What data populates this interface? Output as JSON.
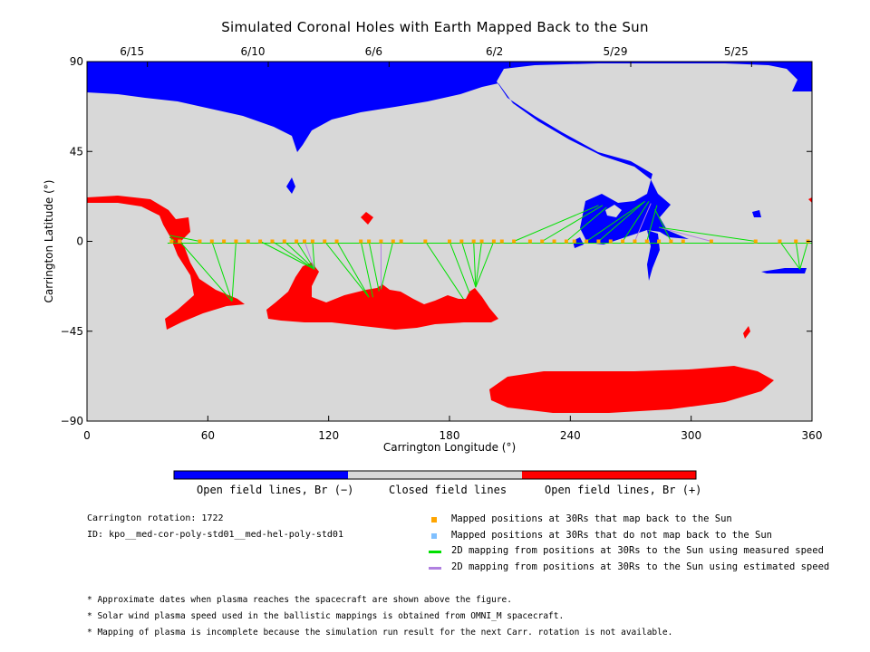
{
  "title": "Simulated Coronal Holes with Earth Mapped Back to the Sun",
  "chart_data": {
    "type": "map",
    "title": "Simulated Coronal Holes with Earth Mapped Back to the Sun",
    "xlabel": "Carrington Longitude (°)",
    "ylabel": "Carrington Latitude (°)",
    "xlim": [
      0,
      360
    ],
    "ylim": [
      -90,
      90
    ],
    "xticks": [
      0,
      60,
      120,
      180,
      240,
      300,
      360
    ],
    "yticks": [
      90,
      45,
      0,
      -45,
      -90
    ],
    "yticklabels": [
      "90",
      "45",
      "0",
      "−45",
      "−90"
    ],
    "top_axis_dates": [
      {
        "label": "6/15",
        "lon": 30
      },
      {
        "label": "6/10",
        "lon": 90
      },
      {
        "label": "6/6",
        "lon": 150
      },
      {
        "label": "6/2",
        "lon": 210
      },
      {
        "label": "5/29",
        "lon": 270
      },
      {
        "label": "5/25",
        "lon": 330
      }
    ],
    "colors": {
      "background": "#d8d8d8",
      "open_negative": "#0000ff",
      "open_positive": "#ff0000",
      "mapped_point": "#ffa500",
      "unmapped_point": "#80c0ff",
      "measured_line": "#00e000",
      "estimated_line": "#b080e0"
    },
    "mapped_positions_lon": [
      42,
      46,
      56,
      62,
      68,
      74,
      80,
      86,
      92,
      98,
      104,
      108,
      112,
      118,
      124,
      136,
      140,
      146,
      152,
      156,
      168,
      180,
      186,
      192,
      196,
      202,
      206,
      212,
      220,
      226,
      232,
      238,
      242,
      248,
      254,
      260,
      266,
      272,
      278,
      284,
      290,
      296,
      310,
      332,
      344,
      352,
      358
    ],
    "field_line_links": [
      {
        "from": [
          44,
          0
        ],
        "to": [
          41,
          2
        ],
        "kind": "measured"
      },
      {
        "from": [
          46,
          0
        ],
        "to": [
          72,
          -30
        ],
        "kind": "measured"
      },
      {
        "from": [
          56,
          0
        ],
        "to": [
          41,
          3
        ],
        "kind": "measured"
      },
      {
        "from": [
          62,
          0
        ],
        "to": [
          72,
          -30
        ],
        "kind": "measured"
      },
      {
        "from": [
          74,
          0
        ],
        "to": [
          72,
          -30
        ],
        "kind": "measured"
      },
      {
        "from": [
          86,
          0
        ],
        "to": [
          113,
          -14
        ],
        "kind": "measured"
      },
      {
        "from": [
          92,
          0
        ],
        "to": [
          113,
          -14
        ],
        "kind": "measured"
      },
      {
        "from": [
          98,
          0
        ],
        "to": [
          113,
          -14
        ],
        "kind": "measured"
      },
      {
        "from": [
          104,
          0
        ],
        "to": [
          113,
          -14
        ],
        "kind": "measured"
      },
      {
        "from": [
          108,
          0
        ],
        "to": [
          113,
          -14
        ],
        "kind": "estimated"
      },
      {
        "from": [
          112,
          0
        ],
        "to": [
          113,
          -14
        ],
        "kind": "measured"
      },
      {
        "from": [
          118,
          0
        ],
        "to": [
          140,
          -28
        ],
        "kind": "measured"
      },
      {
        "from": [
          124,
          0
        ],
        "to": [
          140,
          -28
        ],
        "kind": "measured"
      },
      {
        "from": [
          136,
          0
        ],
        "to": [
          142,
          -28
        ],
        "kind": "measured"
      },
      {
        "from": [
          140,
          0
        ],
        "to": [
          145,
          -25
        ],
        "kind": "measured"
      },
      {
        "from": [
          146,
          0
        ],
        "to": [
          146,
          -24
        ],
        "kind": "estimated"
      },
      {
        "from": [
          152,
          0
        ],
        "to": [
          146,
          -24
        ],
        "kind": "measured"
      },
      {
        "from": [
          168,
          0
        ],
        "to": [
          187,
          -29
        ],
        "kind": "measured"
      },
      {
        "from": [
          180,
          0
        ],
        "to": [
          190,
          -26
        ],
        "kind": "measured"
      },
      {
        "from": [
          186,
          0
        ],
        "to": [
          193,
          -23
        ],
        "kind": "measured"
      },
      {
        "from": [
          192,
          0
        ],
        "to": [
          193,
          -23
        ],
        "kind": "measured"
      },
      {
        "from": [
          196,
          0
        ],
        "to": [
          193,
          -23
        ],
        "kind": "measured"
      },
      {
        "from": [
          202,
          0
        ],
        "to": [
          193,
          -23
        ],
        "kind": "measured"
      },
      {
        "from": [
          212,
          0
        ],
        "to": [
          254,
          18
        ],
        "kind": "measured"
      },
      {
        "from": [
          226,
          0
        ],
        "to": [
          256,
          18
        ],
        "kind": "measured"
      },
      {
        "from": [
          238,
          0
        ],
        "to": [
          258,
          17
        ],
        "kind": "measured"
      },
      {
        "from": [
          248,
          0
        ],
        "to": [
          277,
          20
        ],
        "kind": "measured"
      },
      {
        "from": [
          254,
          0
        ],
        "to": [
          277,
          20
        ],
        "kind": "measured"
      },
      {
        "from": [
          266,
          0
        ],
        "to": [
          279,
          20
        ],
        "kind": "measured"
      },
      {
        "from": [
          272,
          0
        ],
        "to": [
          280,
          19
        ],
        "kind": "estimated"
      },
      {
        "from": [
          278,
          0
        ],
        "to": [
          283,
          18
        ],
        "kind": "measured"
      },
      {
        "from": [
          290,
          0
        ],
        "to": [
          282,
          16
        ],
        "kind": "measured"
      },
      {
        "from": [
          310,
          0
        ],
        "to": [
          284,
          7
        ],
        "kind": "estimated"
      },
      {
        "from": [
          332,
          0
        ],
        "to": [
          284,
          7
        ],
        "kind": "measured"
      },
      {
        "from": [
          344,
          0
        ],
        "to": [
          354,
          -14
        ],
        "kind": "measured"
      },
      {
        "from": [
          352,
          0
        ],
        "to": [
          354,
          -14
        ],
        "kind": "measured"
      },
      {
        "from": [
          358,
          0
        ],
        "to": [
          354,
          -14
        ],
        "kind": "measured"
      }
    ]
  },
  "colorbar": {
    "labels": [
      "Open field lines, Br (−)",
      "Closed field lines",
      "Open field lines, Br (+)"
    ]
  },
  "info": {
    "rotation": "Carrington rotation: 1722",
    "id": "ID: kpo__med-cor-poly-std01__med-hel-poly-std01"
  },
  "legend": [
    {
      "text": "Mapped positions at 30Rs that map back to the Sun",
      "symbol": "square",
      "color": "#ffa500"
    },
    {
      "text": "Mapped positions at 30Rs that do not map back to the Sun",
      "symbol": "square",
      "color": "#80c0ff"
    },
    {
      "text": "2D mapping from positions at 30Rs to the Sun using measured speed",
      "symbol": "line",
      "color": "#00e000"
    },
    {
      "text": "2D mapping from positions at 30Rs to the Sun using estimated speed",
      "symbol": "line",
      "color": "#b080e0"
    }
  ],
  "notes": [
    "* Approximate dates when plasma reaches the spacecraft are shown above the figure.",
    "* Solar wind plasma speed used in the ballistic mappings is obtained from OMNI_M spacecraft.",
    "* Mapping of plasma is incomplete because the simulation run result for the next Carr. rotation is not available."
  ]
}
